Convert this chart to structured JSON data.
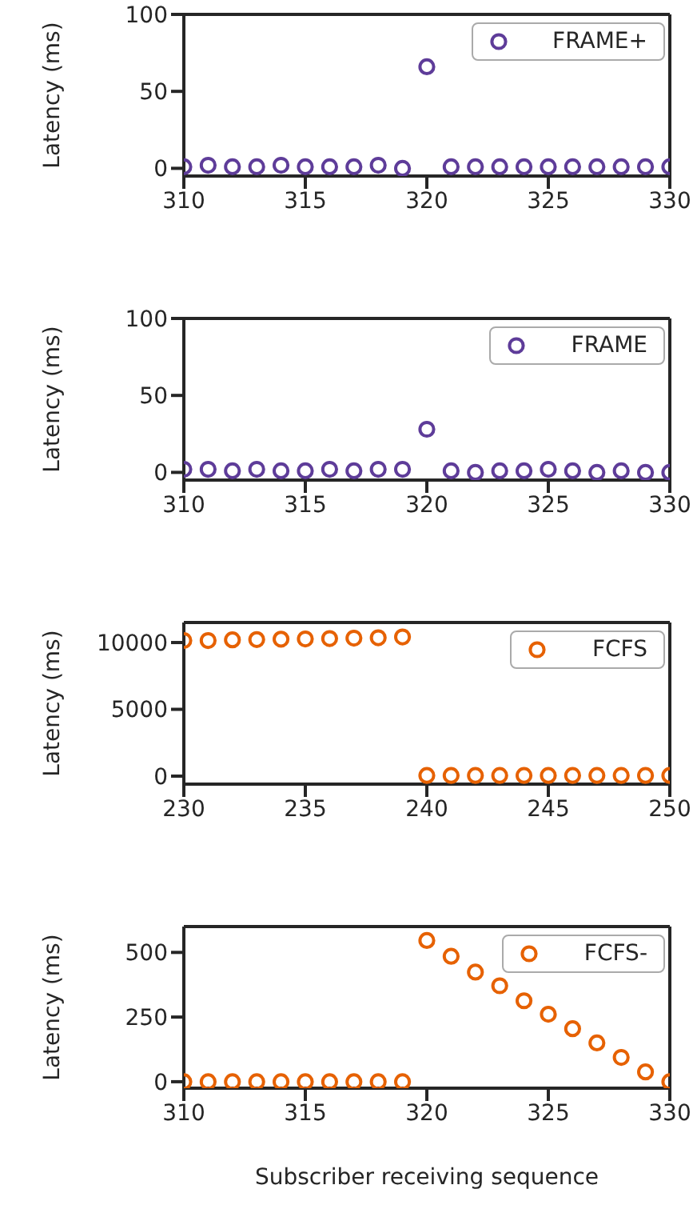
{
  "chart_data": [
    {
      "type": "scatter",
      "ylabel": "Latency (ms)",
      "x": [
        310,
        311,
        312,
        313,
        314,
        315,
        316,
        317,
        318,
        319,
        320,
        321,
        322,
        323,
        324,
        325,
        326,
        327,
        328,
        329,
        330
      ],
      "series": [
        {
          "name": "FRAME+",
          "color": "#5e3c99",
          "values": [
            1,
            2,
            1,
            1,
            2,
            1,
            1,
            1,
            2,
            0,
            66,
            1,
            1,
            1,
            1,
            1,
            1,
            1,
            1,
            1,
            1
          ]
        }
      ],
      "xlim": [
        310,
        330
      ],
      "xticks": [
        310,
        315,
        320,
        325,
        330
      ],
      "ylim": [
        -5,
        100
      ],
      "yticks": [
        0,
        50,
        100
      ],
      "legend": "top right",
      "marker": "circle"
    },
    {
      "type": "scatter",
      "ylabel": "Latency (ms)",
      "x": [
        310,
        311,
        312,
        313,
        314,
        315,
        316,
        317,
        318,
        319,
        320,
        321,
        322,
        323,
        324,
        325,
        326,
        327,
        328,
        329,
        330
      ],
      "series": [
        {
          "name": "FRAME",
          "color": "#5e3c99",
          "values": [
            2,
            2,
            1,
            2,
            1,
            1,
            2,
            1,
            2,
            2,
            28,
            1,
            0,
            1,
            1,
            2,
            1,
            0,
            1,
            0,
            0
          ]
        }
      ],
      "xlim": [
        310,
        330
      ],
      "xticks": [
        310,
        315,
        320,
        325,
        330
      ],
      "ylim": [
        -5,
        100
      ],
      "yticks": [
        0,
        50,
        100
      ],
      "legend": "top right",
      "marker": "circle"
    },
    {
      "type": "scatter",
      "ylabel": "Latency (ms)",
      "x": [
        230,
        231,
        232,
        233,
        234,
        235,
        236,
        237,
        238,
        239,
        240,
        241,
        242,
        243,
        244,
        245,
        246,
        247,
        248,
        249,
        250
      ],
      "series": [
        {
          "name": "FCFS",
          "color": "#e66101",
          "values": [
            10150,
            10150,
            10200,
            10220,
            10250,
            10270,
            10300,
            10330,
            10360,
            10420,
            50,
            50,
            50,
            50,
            50,
            50,
            50,
            50,
            50,
            50,
            50
          ]
        }
      ],
      "xlim": [
        230,
        250
      ],
      "xticks": [
        230,
        235,
        240,
        245,
        250
      ],
      "ylim": [
        -600,
        11500
      ],
      "yticks": [
        0,
        5000,
        10000
      ],
      "legend": "top right",
      "marker": "circle"
    },
    {
      "type": "scatter",
      "ylabel": "Latency (ms)",
      "xlabel": "Subscriber receiving sequence",
      "x": [
        310,
        311,
        312,
        313,
        314,
        315,
        316,
        317,
        318,
        319,
        320,
        321,
        322,
        323,
        324,
        325,
        326,
        327,
        328,
        329,
        330
      ],
      "series": [
        {
          "name": "FCFS-",
          "color": "#e66101",
          "values": [
            0,
            0,
            0,
            0,
            0,
            0,
            0,
            0,
            0,
            0,
            546,
            485,
            424,
            371,
            313,
            261,
            205,
            150,
            94,
            38,
            0
          ]
        }
      ],
      "xlim": [
        310,
        330
      ],
      "xticks": [
        310,
        315,
        320,
        325,
        330
      ],
      "ylim": [
        -25,
        600
      ],
      "yticks": [
        0,
        250,
        500
      ],
      "legend": "top right",
      "marker": "circle"
    }
  ]
}
